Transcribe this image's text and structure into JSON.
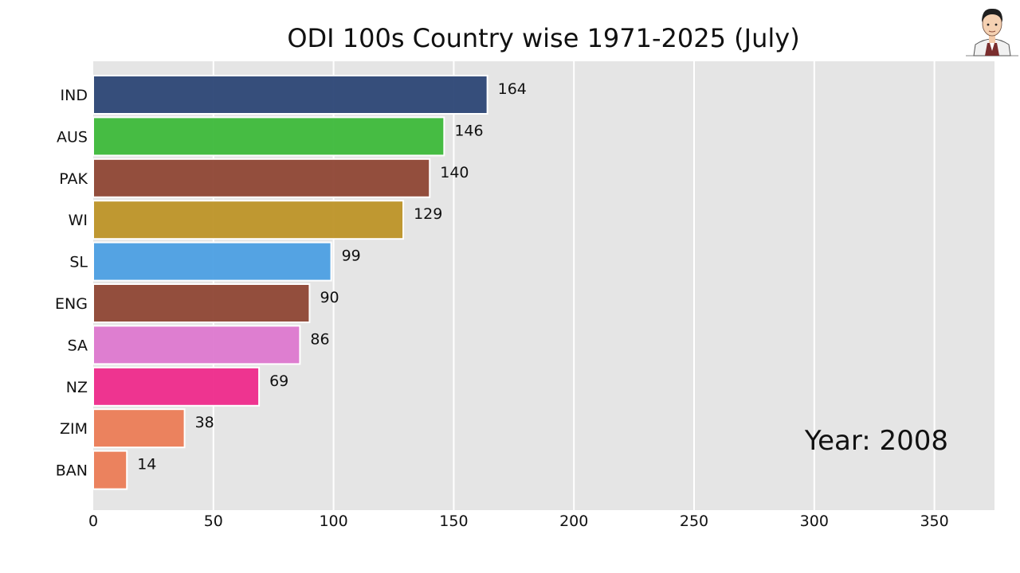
{
  "chart_data": {
    "type": "bar",
    "orientation": "horizontal",
    "title": "ODI 100s Country wise 1971-2025 (July)",
    "annotation": "Year: 2008",
    "categories": [
      "IND",
      "AUS",
      "PAK",
      "WI",
      "SL",
      "ENG",
      "SA",
      "NZ",
      "ZIM",
      "BAN"
    ],
    "values": [
      164,
      146,
      140,
      129,
      99,
      90,
      86,
      69,
      38,
      14
    ],
    "colors": [
      "#2c4675",
      "#3db93a",
      "#8e4634",
      "#bd9427",
      "#4c9fe3",
      "#8e4634",
      "#dd78cf",
      "#ee2a8b",
      "#eb7c56",
      "#eb7c56"
    ],
    "xlim": [
      0,
      375
    ],
    "xticks": [
      0,
      50,
      100,
      150,
      200,
      250,
      300,
      350
    ],
    "grid": true,
    "background_color": "#e5e5e5"
  },
  "logo": {
    "icon": "cartoon-avatar-icon"
  }
}
